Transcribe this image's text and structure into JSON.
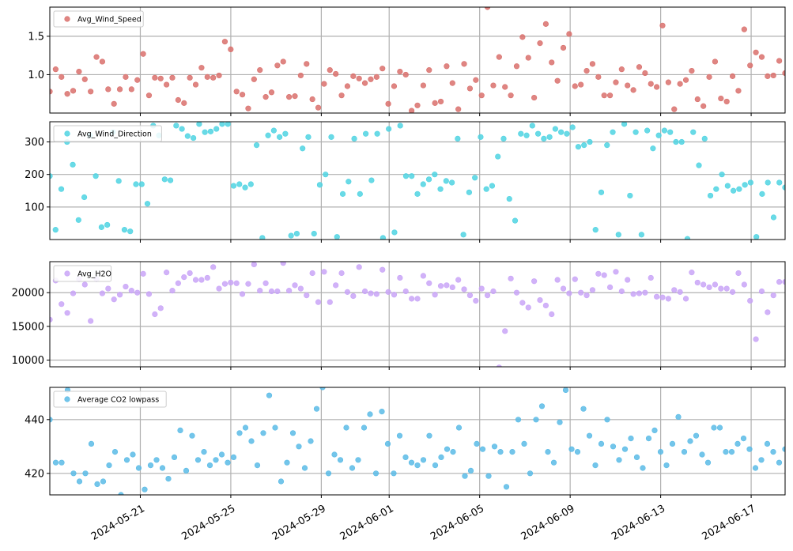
{
  "chart_data": [
    {
      "type": "scatter",
      "series": [
        {
          "name": "Avg_Wind_Speed",
          "color": "#d9706c",
          "values": [
            0.78,
            1.07,
            0.97,
            0.75,
            0.79,
            1.04,
            0.94,
            0.78,
            1.23,
            1.17,
            0.81,
            0.62,
            0.81,
            0.97,
            0.81,
            0.93,
            1.27,
            0.73,
            0.96,
            0.95,
            0.87,
            0.96,
            0.67,
            0.63,
            0.96,
            0.87,
            1.09,
            0.97,
            0.96,
            0.99,
            1.43,
            1.33,
            0.78,
            0.74,
            0.56,
            0.94,
            1.06,
            0.71,
            0.77,
            1.12,
            1.17,
            0.71,
            0.72,
            0.99,
            1.14,
            0.68,
            0.57,
            0.88,
            1.06,
            1.01,
            0.73,
            0.85,
            0.98,
            0.95,
            0.89,
            0.94,
            0.97,
            1.08,
            0.62,
            0.85,
            1.04,
            1.0,
            0.53,
            0.6,
            0.86,
            1.06,
            0.63,
            0.65,
            1.11,
            0.89,
            0.55,
            1.14,
            0.82,
            0.93,
            0.73,
            1.88,
            0.86,
            1.23,
            0.84,
            0.73,
            1.11,
            1.49,
            1.22,
            0.7,
            1.41,
            1.66,
            1.16,
            0.92,
            1.35,
            1.53,
            0.85,
            0.87,
            1.05,
            1.14,
            0.97,
            0.73,
            0.73,
            0.9,
            1.07,
            0.86,
            0.8,
            1.1,
            1.02,
            0.88,
            0.84,
            1.64,
            0.9,
            0.55,
            0.88,
            0.93,
            1.05,
            0.68,
            0.59,
            0.97,
            1.17,
            0.69,
            0.65,
            0.98,
            0.79,
            1.59,
            1.12,
            1.29,
            1.23,
            0.98,
            0.99,
            1.18,
            1.02
          ]
        }
      ],
      "ylim": [
        0.5,
        1.88
      ],
      "yticks": [
        {
          "value": 1.0,
          "label": "1.0"
        },
        {
          "value": 1.5,
          "label": "1.5"
        }
      ],
      "grid": true,
      "legend": "top-left"
    },
    {
      "type": "scatter",
      "series": [
        {
          "name": "Avg_Wind_Direction",
          "color": "#4fd3e2",
          "values": [
            195,
            30,
            155,
            300,
            230,
            60,
            130,
            320,
            195,
            38,
            45,
            330,
            180,
            30,
            25,
            170,
            170,
            110,
            350,
            320,
            185,
            182,
            350,
            340,
            318,
            312,
            355,
            330,
            332,
            340,
            355,
            355,
            165,
            170,
            160,
            170,
            290,
            5,
            320,
            335,
            315,
            325,
            12,
            18,
            280,
            315,
            18,
            168,
            200,
            315,
            8,
            140,
            178,
            310,
            140,
            325,
            182,
            325,
            5,
            340,
            22,
            350,
            195,
            195,
            140,
            170,
            185,
            200,
            155,
            180,
            175,
            310,
            15,
            145,
            190,
            315,
            155,
            165,
            255,
            310,
            125,
            58,
            325,
            320,
            350,
            325,
            310,
            315,
            340,
            330,
            325,
            345,
            285,
            290,
            300,
            30,
            145,
            290,
            330,
            15,
            355,
            135,
            330,
            15,
            335,
            280,
            320,
            335,
            330,
            300,
            300,
            2,
            330,
            228,
            310,
            135,
            155,
            200,
            165,
            150,
            155,
            168,
            175,
            8,
            140,
            175,
            68,
            175,
            160
          ]
        }
      ],
      "ylim": [
        0,
        362
      ],
      "yticks": [
        {
          "value": 100,
          "label": "100"
        },
        {
          "value": 200,
          "label": "200"
        },
        {
          "value": 300,
          "label": "300"
        }
      ],
      "grid": true,
      "legend": "top-left"
    },
    {
      "type": "scatter",
      "series": [
        {
          "name": "Avg_H2O",
          "color": "#c9a5f7",
          "values": [
            16000,
            21800,
            18300,
            17000,
            19900,
            22000,
            21200,
            15800,
            22000,
            19900,
            20600,
            19000,
            19700,
            20900,
            20300,
            20000,
            22800,
            19800,
            16800,
            17700,
            23000,
            20300,
            21400,
            22300,
            22900,
            21900,
            21900,
            22200,
            23800,
            20600,
            21300,
            21500,
            21400,
            19800,
            21300,
            24200,
            20300,
            21400,
            20200,
            20200,
            24400,
            20300,
            21100,
            20600,
            19600,
            22900,
            18600,
            23100,
            18600,
            21100,
            22900,
            20100,
            19500,
            23800,
            20200,
            19900,
            19800,
            23400,
            20100,
            19700,
            22200,
            20200,
            19100,
            19100,
            22500,
            21400,
            19700,
            21000,
            21100,
            20800,
            21900,
            20500,
            19600,
            18800,
            20600,
            19600,
            20200,
            8900,
            14300,
            22100,
            20000,
            18500,
            17800,
            21700,
            18900,
            18100,
            16800,
            21900,
            20600,
            19900,
            22000,
            20000,
            19600,
            20400,
            22800,
            22600,
            20800,
            23100,
            20200,
            21900,
            19800,
            19900,
            20000,
            22200,
            19400,
            19300,
            19100,
            20400,
            20100,
            19100,
            23000,
            21500,
            21200,
            20800,
            21200,
            20600,
            20600,
            20100,
            22900,
            21200,
            18800,
            13100,
            20200,
            17100,
            19600,
            21600,
            21600
          ]
        }
      ],
      "ylim": [
        9000,
        24600
      ],
      "yticks": [
        {
          "value": 10000,
          "label": "10000"
        },
        {
          "value": 15000,
          "label": "15000"
        },
        {
          "value": 20000,
          "label": "20000"
        }
      ],
      "grid": true,
      "legend": "top-left"
    },
    {
      "type": "scatter",
      "series": [
        {
          "name": "Average CO2 lowpass",
          "color": "#5abbe6",
          "values": [
            440,
            424,
            424,
            451,
            420,
            417,
            420,
            431,
            416,
            417,
            423,
            428,
            412,
            425,
            427,
            422,
            414,
            423,
            425,
            422,
            418,
            426,
            436,
            421,
            434,
            425,
            428,
            423,
            425,
            427,
            424,
            426,
            435,
            437,
            432,
            423,
            435,
            449,
            437,
            417,
            424,
            435,
            430,
            422,
            432,
            444,
            452,
            420,
            427,
            425,
            437,
            422,
            425,
            437,
            442,
            420,
            443,
            431,
            420,
            434,
            426,
            424,
            423,
            425,
            434,
            423,
            426,
            429,
            428,
            437,
            419,
            421,
            431,
            429,
            419,
            430,
            428,
            415,
            428,
            440,
            431,
            420,
            440,
            445,
            428,
            424,
            439,
            451,
            429,
            428,
            444,
            434,
            423,
            431,
            440,
            430,
            425,
            429,
            433,
            426,
            422,
            433,
            436,
            428,
            423,
            431,
            441,
            428,
            432,
            434,
            427,
            424,
            437,
            437,
            428,
            428,
            431,
            433,
            429,
            422,
            425,
            431,
            428,
            424,
            429
          ]
        }
      ],
      "ylim": [
        412,
        452
      ],
      "yticks": [
        {
          "value": 420,
          "label": "420"
        },
        {
          "value": 440,
          "label": "440"
        }
      ],
      "grid": true,
      "legend": "top-left"
    }
  ],
  "x_axis": {
    "min": 0,
    "max": 32.5,
    "ticks": [
      {
        "value": 4,
        "label": "2024-05-21"
      },
      {
        "value": 8,
        "label": "2024-05-25"
      },
      {
        "value": 12,
        "label": "2024-05-29"
      },
      {
        "value": 15,
        "label": "2024-06-01"
      },
      {
        "value": 19,
        "label": "2024-06-05"
      },
      {
        "value": 23,
        "label": "2024-06-09"
      },
      {
        "value": 27,
        "label": "2024-06-13"
      },
      {
        "value": 31,
        "label": "2024-06-17"
      }
    ]
  }
}
